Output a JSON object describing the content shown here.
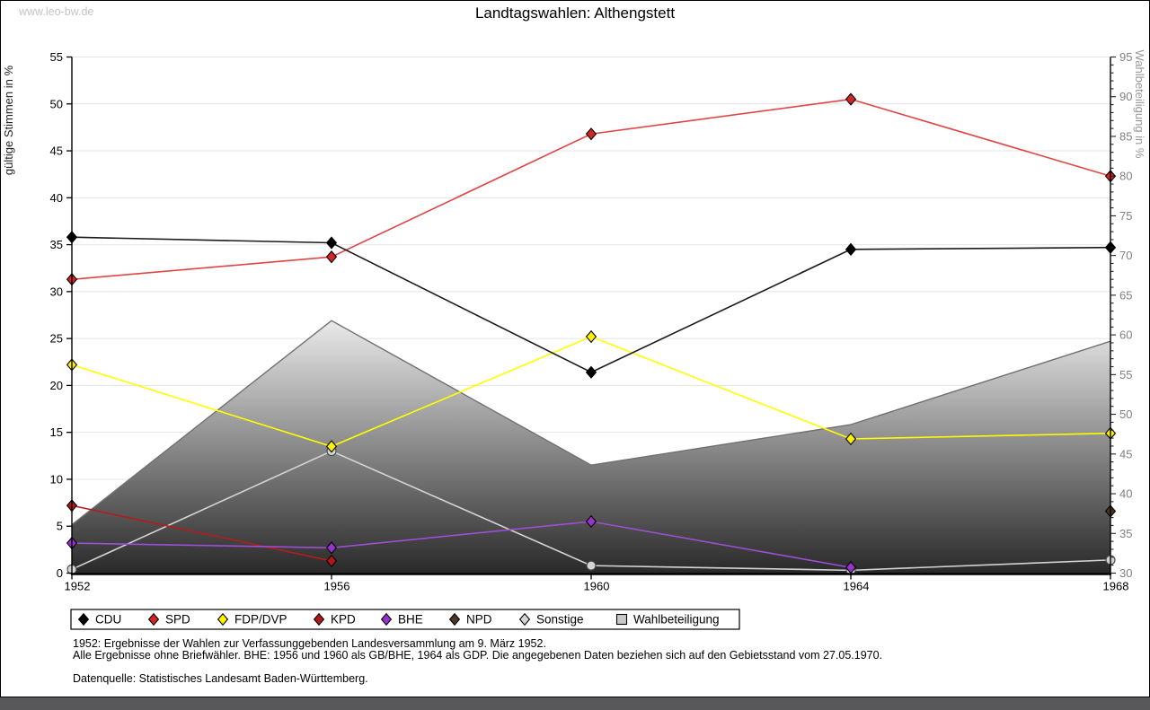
{
  "watermark": "www.leo-bw.de",
  "title": "Landtagswahlen: Althengstett",
  "left_axis": {
    "title": "gültige Stimmen in %",
    "min": 0,
    "max": 55,
    "step": 5
  },
  "right_axis": {
    "title": "Wahlbeteiligung in %",
    "min": 30,
    "max": 95,
    "step": 5
  },
  "x_axis": {
    "labels": [
      "1952",
      "1956",
      "1960",
      "1964",
      "1968"
    ]
  },
  "chart_data": {
    "type": "line",
    "categories": [
      1952,
      1956,
      1960,
      1964,
      1968
    ],
    "left_ylim": [
      0,
      55
    ],
    "right_ylim": [
      30,
      95
    ],
    "grid": true,
    "legend_position": "bottom",
    "series": [
      {
        "name": "CDU",
        "axis": "left",
        "style": "line",
        "marker": "diamond",
        "line_color": "#1a1a1a",
        "marker_color": "#000000",
        "values": [
          35.8,
          35.2,
          21.4,
          34.5,
          34.7
        ]
      },
      {
        "name": "SPD",
        "axis": "left",
        "style": "line",
        "marker": "diamond",
        "line_color": "#e04545",
        "marker_color": "#d22626",
        "values": [
          31.3,
          33.7,
          46.8,
          50.5,
          42.3
        ]
      },
      {
        "name": "FDP/DVP",
        "axis": "left",
        "style": "line",
        "marker": "diamond",
        "line_color": "#ffff00",
        "marker_color": "#ffef00",
        "values": [
          22.2,
          13.5,
          25.2,
          14.3,
          14.9
        ]
      },
      {
        "name": "KPD",
        "axis": "left",
        "style": "line",
        "marker": "diamond",
        "line_color": "#b51c1c",
        "marker_color": "#b01818",
        "values": [
          7.2,
          1.3,
          null,
          null,
          null
        ]
      },
      {
        "name": "BHE",
        "axis": "left",
        "style": "line",
        "marker": "diamond",
        "line_color": "#9c4fd4",
        "marker_color": "#9633cc",
        "values": [
          3.2,
          2.7,
          5.5,
          0.6,
          null
        ]
      },
      {
        "name": "NPD",
        "axis": "left",
        "style": "line",
        "marker": "diamond",
        "line_color": "#4f3526",
        "marker_color": "#4f3526",
        "values": [
          null,
          null,
          null,
          null,
          6.6
        ]
      },
      {
        "name": "Sonstige",
        "axis": "left",
        "style": "line",
        "marker": "circle",
        "line_color": "#d4d4d4",
        "marker_color": "#d4d4d4",
        "values": [
          0.4,
          13.0,
          0.8,
          0.3,
          1.4
        ]
      },
      {
        "name": "Wahlbeteiligung",
        "axis": "right",
        "style": "area",
        "marker": "square",
        "line_color": "#707070",
        "marker_color": "#c8c8c8",
        "values": [
          36.1,
          61.8,
          43.6,
          48.7,
          59.2
        ]
      }
    ]
  },
  "legend": {
    "items": [
      "CDU",
      "SPD",
      "FDP/DVP",
      "KPD",
      "BHE",
      "NPD",
      "Sonstige",
      "Wahlbeteiligung"
    ]
  },
  "footnotes": {
    "line1": "1952: Ergebnisse der Wahlen zur Verfassunggebenden Landesversammlung am 9. März 1952.",
    "line2": "Alle Ergebnisse ohne Briefwähler. BHE: 1956 und 1960 als GB/BHE, 1964 als GDP. Die angegebenen Daten beziehen sich auf den Gebietsstand vom 27.05.1970.",
    "line3": "Datenquelle: Statistisches Landesamt Baden-Württemberg."
  },
  "colors": {
    "grid": "#e4e4e4",
    "axis": "#000000",
    "right_axis_text": "#808080",
    "right_axis_title": "#999999",
    "area_gradient_top": "#f5f5f5",
    "area_gradient_bottom": "#262626",
    "bottom_bar": "#58585a",
    "watermark_text": "#c4c4c4"
  }
}
